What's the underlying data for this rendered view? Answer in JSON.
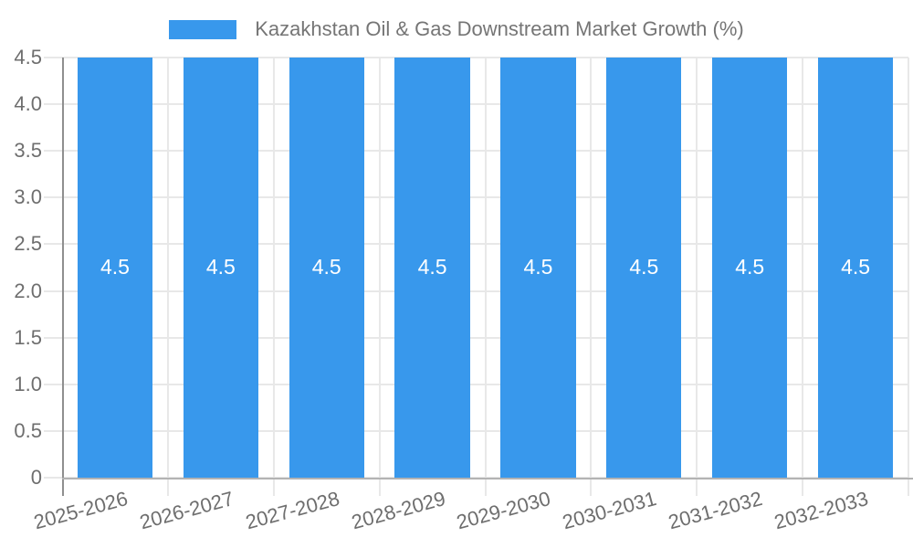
{
  "chart_data": {
    "type": "bar",
    "title": "Kazakhstan Oil & Gas Downstream Market Growth (%)",
    "legend": {
      "position": "top",
      "entries": [
        "Kazakhstan Oil & Gas Downstream Market Growth (%)"
      ]
    },
    "categories": [
      "2025-2026",
      "2026-2027",
      "2027-2028",
      "2028-2029",
      "2029-2030",
      "2030-2031",
      "2031-2032",
      "2032-2033"
    ],
    "values": [
      4.5,
      4.5,
      4.5,
      4.5,
      4.5,
      4.5,
      4.5,
      4.5
    ],
    "value_labels": [
      "4.5",
      "4.5",
      "4.5",
      "4.5",
      "4.5",
      "4.5",
      "4.5",
      "4.5"
    ],
    "xlabel": "",
    "ylabel": "",
    "ylim": [
      0,
      4.5
    ],
    "yticks": [
      {
        "value": 0,
        "label": "0"
      },
      {
        "value": 0.5,
        "label": "0.5"
      },
      {
        "value": 1.0,
        "label": "1.0"
      },
      {
        "value": 1.5,
        "label": "1.5"
      },
      {
        "value": 2.0,
        "label": "2.0"
      },
      {
        "value": 2.5,
        "label": "2.5"
      },
      {
        "value": 3.0,
        "label": "3.0"
      },
      {
        "value": 3.5,
        "label": "3.5"
      },
      {
        "value": 4.0,
        "label": "4.0"
      },
      {
        "value": 4.5,
        "label": "4.5"
      }
    ],
    "grid": true,
    "colors": {
      "bar": "#3898ec",
      "value_label": "#ffffff",
      "title": "#757575",
      "tick_label": "#6e6e6e",
      "grid": "#e8e8e8",
      "y_axis": "#8f8f8f",
      "x_axis": "#b3b3b3",
      "background": "#ffffff"
    }
  }
}
